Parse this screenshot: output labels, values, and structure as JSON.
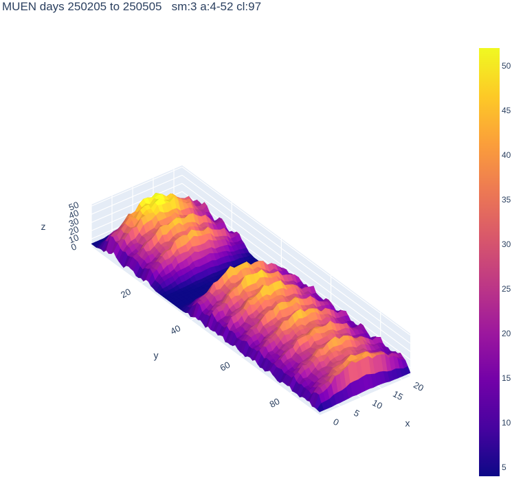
{
  "chart_data": {
    "type": "surface",
    "title": "MUEN days 250205 to 250505   sm:3 a:4-52 cl:97",
    "colorscale": "plasma",
    "colorscale_colors": [
      "#0d0887",
      "#46039f",
      "#7201a8",
      "#9c179e",
      "#bd3786",
      "#d8576b",
      "#ed7953",
      "#fb9f3a",
      "#fdca26",
      "#f0f921"
    ],
    "x_axis": {
      "label": "x",
      "range": [
        0,
        22
      ],
      "ticks": [
        "0",
        "5",
        "10",
        "15",
        "20"
      ]
    },
    "y_axis": {
      "label": "y",
      "range": [
        0,
        92
      ],
      "ticks": [
        "20",
        "40",
        "60",
        "80"
      ]
    },
    "z_axis": {
      "label": "z",
      "range": [
        0,
        52
      ],
      "ticks": [
        "0",
        "10",
        "20",
        "30",
        "40",
        "50"
      ]
    },
    "colorbar": {
      "range": [
        4,
        52
      ],
      "ticks": [
        "5",
        "10",
        "15",
        "20",
        "25",
        "30",
        "35",
        "40",
        "45",
        "50"
      ]
    },
    "surface_profile": {
      "description_of_values": "approximate height z by day index y, peak value along x",
      "ridges": [
        {
          "y_center": 10,
          "peak": 51
        },
        {
          "y_center": 16,
          "peak": 47
        },
        {
          "y_center": 22,
          "peak": 44
        },
        {
          "y_center": 29,
          "low": 6
        },
        {
          "y_center": 35,
          "low": 6
        },
        {
          "y_center": 41,
          "peak": 46
        },
        {
          "y_center": 47,
          "peak": 48
        },
        {
          "y_center": 53,
          "peak": 47
        },
        {
          "y_center": 60,
          "peak": 44
        },
        {
          "y_center": 66,
          "peak": 45
        },
        {
          "y_center": 73,
          "peak": 41
        },
        {
          "y_center": 80,
          "peak": 42
        },
        {
          "y_center": 88,
          "peak": 40
        }
      ]
    }
  }
}
